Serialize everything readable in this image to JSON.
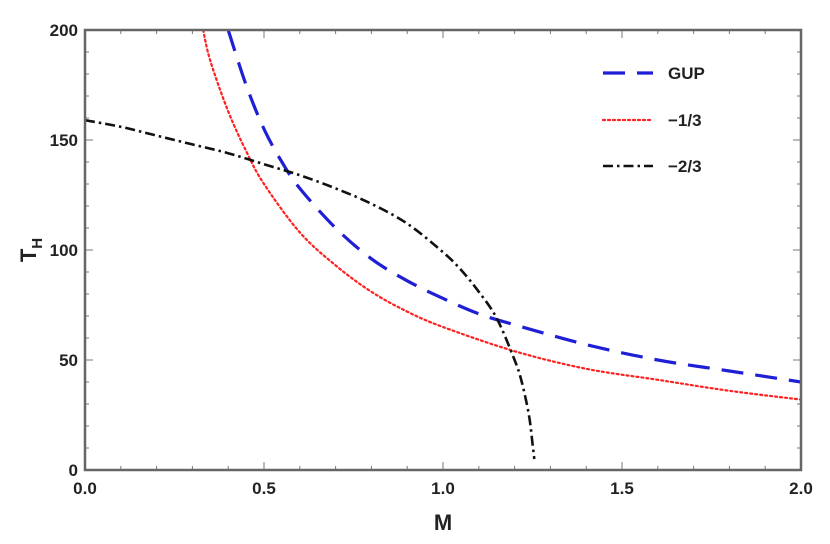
{
  "chart_data": {
    "type": "line",
    "xlabel": "M",
    "ylabel": "T",
    "ylabel_sub": "H",
    "xlim": [
      0,
      2
    ],
    "ylim": [
      0,
      200
    ],
    "x_ticks": [
      0.0,
      0.5,
      1.0,
      1.5,
      2.0
    ],
    "x_tick_labels": [
      "0.0",
      "0.5",
      "1.0",
      "1.5",
      "2.0"
    ],
    "y_ticks": [
      0,
      50,
      100,
      150,
      200
    ],
    "y_tick_labels": [
      "0",
      "50",
      "100",
      "150",
      "200"
    ],
    "grid": false,
    "legend_position": "top-right",
    "series": [
      {
        "name": "GUP",
        "color": "#1f1fd6",
        "style": "dashed",
        "x": [
          0.4,
          0.45,
          0.5,
          0.55,
          0.6,
          0.7,
          0.8,
          0.9,
          1.0,
          1.1,
          1.2,
          1.4,
          1.6,
          1.8,
          2.0
        ],
        "y": [
          200,
          175,
          155,
          140,
          128,
          110,
          96,
          86,
          78,
          71,
          66,
          57,
          50,
          45,
          40
        ]
      },
      {
        "name": "−1/3",
        "color": "#ff2020",
        "style": "dotted",
        "x": [
          0.33,
          0.35,
          0.4,
          0.45,
          0.5,
          0.6,
          0.7,
          0.8,
          0.9,
          1.0,
          1.2,
          1.4,
          1.6,
          1.8,
          2.0
        ],
        "y": [
          200,
          186,
          163,
          145,
          130,
          108,
          93,
          81,
          72,
          65,
          54,
          46,
          41,
          36,
          32
        ]
      },
      {
        "name": "−2/3",
        "color": "#111111",
        "style": "dashdot",
        "x": [
          0.0,
          0.1,
          0.2,
          0.3,
          0.4,
          0.5,
          0.6,
          0.7,
          0.8,
          0.9,
          1.0,
          1.05,
          1.1,
          1.15,
          1.2,
          1.22,
          1.24,
          1.25,
          1.255
        ],
        "y": [
          159,
          156,
          152,
          148,
          144,
          139,
          134,
          128,
          121,
          112,
          99,
          91,
          81,
          69,
          50,
          40,
          25,
          12,
          5
        ]
      }
    ]
  }
}
